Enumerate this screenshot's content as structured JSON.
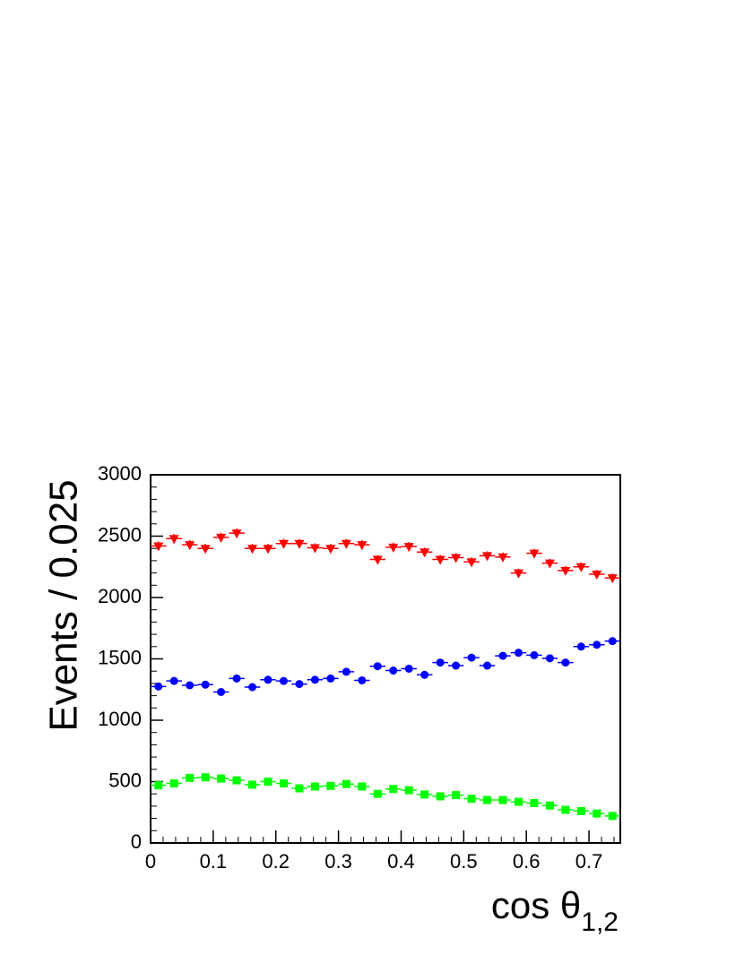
{
  "chart_data": {
    "type": "scatter",
    "title": "",
    "xlabel": "cos θ",
    "xlabel_subscript": "1,2",
    "ylabel": "Events / 0.025",
    "xlim": [
      0,
      0.75
    ],
    "ylim": [
      0,
      3000
    ],
    "grid": false,
    "x_ticks": [
      {
        "value": 0,
        "label": "0"
      },
      {
        "value": 0.1,
        "label": "0.1"
      },
      {
        "value": 0.2,
        "label": "0.2"
      },
      {
        "value": 0.3,
        "label": "0.3"
      },
      {
        "value": 0.4,
        "label": "0.4"
      },
      {
        "value": 0.5,
        "label": "0.5"
      },
      {
        "value": 0.6,
        "label": "0.6"
      },
      {
        "value": 0.7,
        "label": "0.7"
      }
    ],
    "y_ticks": [
      {
        "value": 0,
        "label": "0"
      },
      {
        "value": 500,
        "label": "500"
      },
      {
        "value": 1000,
        "label": "1000"
      },
      {
        "value": 1500,
        "label": "1500"
      },
      {
        "value": 2000,
        "label": "2000"
      },
      {
        "value": 2500,
        "label": "2500"
      },
      {
        "value": 3000,
        "label": "3000"
      }
    ],
    "x": [
      0.0125,
      0.0375,
      0.0625,
      0.0875,
      0.1125,
      0.1375,
      0.1625,
      0.1875,
      0.2125,
      0.2375,
      0.2625,
      0.2875,
      0.3125,
      0.3375,
      0.3625,
      0.3875,
      0.4125,
      0.4375,
      0.4625,
      0.4875,
      0.5125,
      0.5375,
      0.5625,
      0.5875,
      0.6125,
      0.6375,
      0.6625,
      0.6875,
      0.7125,
      0.7375
    ],
    "series": [
      {
        "marker": "triangle-down",
        "color": "#ff0000",
        "values": [
          2420,
          2480,
          2430,
          2400,
          2490,
          2525,
          2400,
          2400,
          2440,
          2440,
          2405,
          2400,
          2440,
          2430,
          2310,
          2410,
          2415,
          2370,
          2310,
          2325,
          2290,
          2340,
          2330,
          2200,
          2360,
          2280,
          2220,
          2250,
          2190,
          2160
        ]
      },
      {
        "marker": "circle",
        "color": "#0000ff",
        "values": [
          1275,
          1320,
          1285,
          1290,
          1230,
          1340,
          1270,
          1330,
          1320,
          1295,
          1330,
          1340,
          1395,
          1325,
          1440,
          1405,
          1420,
          1370,
          1470,
          1445,
          1510,
          1445,
          1525,
          1550,
          1530,
          1505,
          1470,
          1600,
          1615,
          1645
        ]
      },
      {
        "marker": "square",
        "color": "#00ff00",
        "values": [
          470,
          485,
          530,
          535,
          525,
          510,
          475,
          500,
          485,
          445,
          460,
          465,
          480,
          460,
          400,
          440,
          430,
          395,
          380,
          390,
          360,
          350,
          350,
          335,
          325,
          305,
          270,
          260,
          240,
          220
        ]
      }
    ]
  }
}
